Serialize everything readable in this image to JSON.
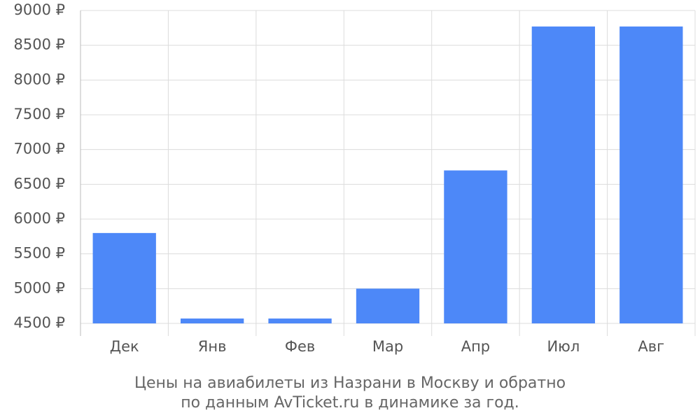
{
  "chart_data": {
    "type": "bar",
    "title": "Цены на авиабилеты из Назрани в Москву и обратно",
    "subtitle": "по данным AvTicket.ru в динамике за год.",
    "categories": [
      "Дек",
      "Янв",
      "Фев",
      "Мар",
      "Апр",
      "Июл",
      "Авг"
    ],
    "values": [
      5800,
      4570,
      4570,
      5000,
      6700,
      8770,
      8770
    ],
    "color": "#4d88f8",
    "ylim": [
      4500,
      9000
    ],
    "yticks": [
      {
        "value": 4500,
        "label": "4500 ₽"
      },
      {
        "value": 5000,
        "label": "5000 ₽"
      },
      {
        "value": 5500,
        "label": "5500 ₽"
      },
      {
        "value": 6000,
        "label": "6000 ₽"
      },
      {
        "value": 6500,
        "label": "6500 ₽"
      },
      {
        "value": 7000,
        "label": "7000 ₽"
      },
      {
        "value": 7500,
        "label": "7500 ₽"
      },
      {
        "value": 8000,
        "label": "8000 ₽"
      },
      {
        "value": 8500,
        "label": "8500 ₽"
      },
      {
        "value": 9000,
        "label": "9000 ₽"
      }
    ],
    "grid": true
  }
}
